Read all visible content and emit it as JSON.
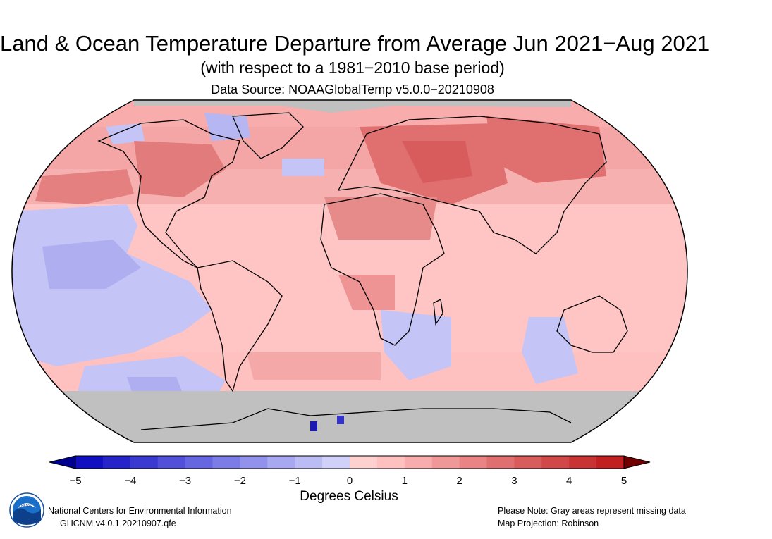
{
  "header": {
    "title": "Land & Ocean Temperature Departure from Average Jun 2021−Aug 2021",
    "subtitle": "(with respect to a 1981−2010 base period)",
    "source": "Data Source: NOAAGlobalTemp v5.0.0−20210908"
  },
  "map": {
    "projection": "Robinson",
    "missing_color": "#c0c0c0",
    "ocean_background_color": "#ffc0c0"
  },
  "colorbar": {
    "title": "Degrees Celsius",
    "min": -5,
    "max": 5,
    "step": 0.5,
    "tick_labels": [
      "−5",
      "−4",
      "−3",
      "−2",
      "−1",
      "0",
      "1",
      "2",
      "3",
      "4",
      "5"
    ],
    "colors": [
      "#1010c0",
      "#2424c8",
      "#3a3ad0",
      "#5050d8",
      "#6666e0",
      "#7c7ce6",
      "#9292ec",
      "#a8a8f0",
      "#bcbcf4",
      "#d0d0f8",
      "#ffd0d0",
      "#ffc0c0",
      "#f8acac",
      "#f09898",
      "#e88484",
      "#e07070",
      "#d85c5c",
      "#d04848",
      "#c83434",
      "#c02020"
    ],
    "below_color": "#000090",
    "above_color": "#700000"
  },
  "footer": {
    "org": "National Centers for Environmental Information",
    "version": "GHCNM v4.0.1.20210907.qfe",
    "note": "Please Note: Gray areas represent missing data",
    "projection_note": "Map Projection: Robinson",
    "logo_text": "NOAA"
  }
}
